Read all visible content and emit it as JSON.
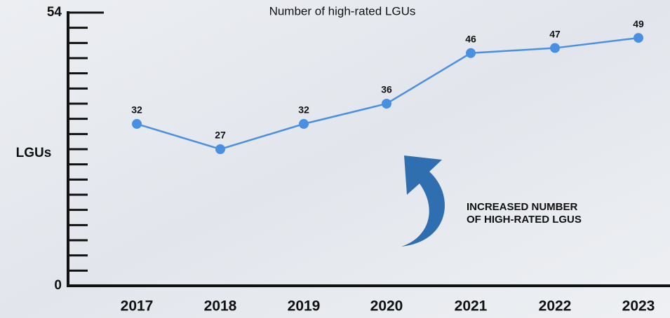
{
  "chart_data": {
    "type": "line",
    "title": "Number of high-rated LGUs",
    "y_label": "LGUs",
    "categories": [
      "2017",
      "2018",
      "2019",
      "2020",
      "2021",
      "2022",
      "2023"
    ],
    "series": [
      {
        "name": "Number of high-rated LGUs",
        "color": "#4a90e2",
        "values": [
          32,
          27,
          32,
          36,
          46,
          47,
          49
        ]
      }
    ],
    "ylim": [
      0,
      54
    ],
    "yticks": [
      0,
      54
    ],
    "minor_yticks": [
      3,
      6,
      9,
      12,
      15,
      18,
      21,
      24,
      27,
      30,
      33,
      36,
      39,
      42,
      45,
      48,
      51
    ],
    "annotation": [
      "INCREASED NUMBER",
      "OF HIGH-RATED LGUS"
    ]
  }
}
